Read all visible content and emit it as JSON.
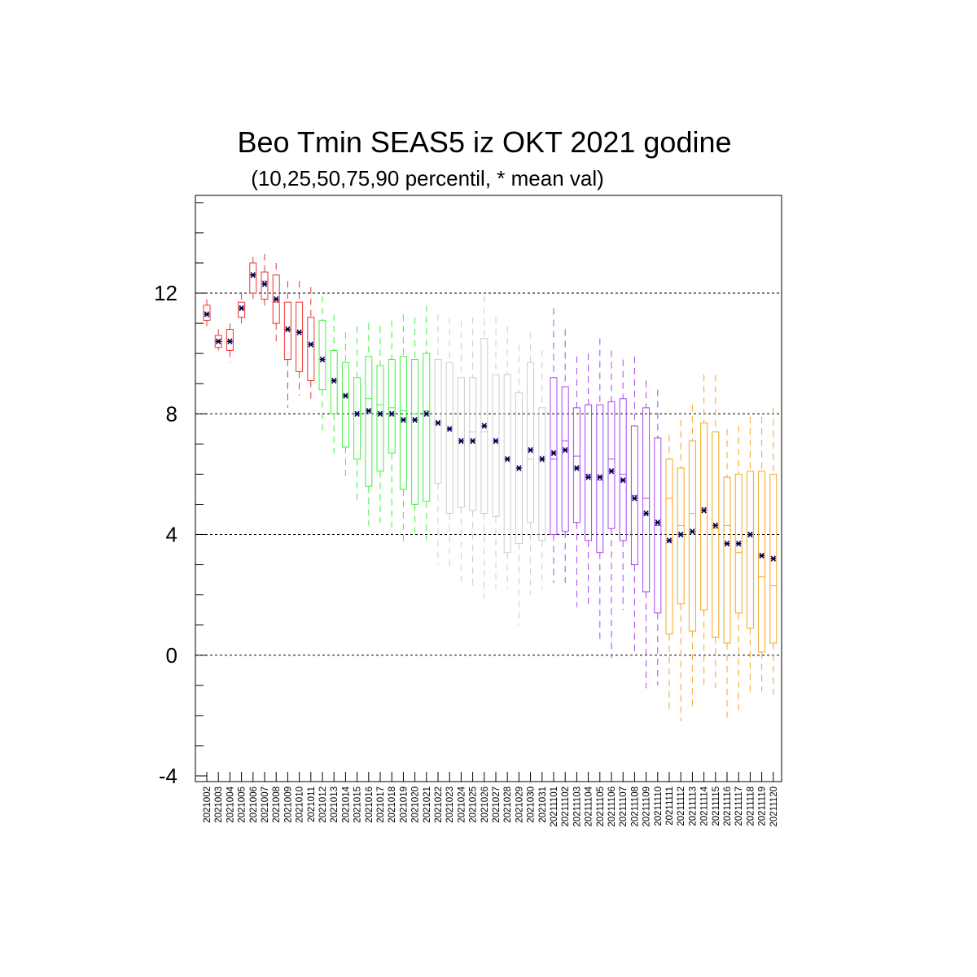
{
  "chart_data": {
    "type": "box",
    "title": "Beo Tmin SEAS5 iz OKT 2021 godine",
    "subtitle": "(10,25,50,75,90 percentil, * mean val)",
    "ylim": [
      -4,
      15.5
    ],
    "yticks": [
      -4,
      0,
      4,
      8,
      12
    ],
    "grid_y": [
      0,
      4,
      8,
      12
    ],
    "colors": {
      "red": "#ee3333",
      "green": "#44ee44",
      "gray": "#cccccc",
      "purple": "#aa44ee",
      "orange": "#f5a623",
      "mean": "#000055",
      "grid": "#000000"
    },
    "categories": [
      "2021002",
      "2021003",
      "2021004",
      "2021005",
      "2021006",
      "2021007",
      "2021008",
      "2021009",
      "2021010",
      "2021011",
      "2021012",
      "2021013",
      "2021014",
      "2021015",
      "2021016",
      "2021017",
      "2021018",
      "2021019",
      "2021020",
      "2021021",
      "2021022",
      "2021023",
      "2021024",
      "2021025",
      "2021026",
      "2021027",
      "2021028",
      "2021029",
      "2021030",
      "2021031",
      "20211101",
      "20211102",
      "20211103",
      "20211104",
      "20211105",
      "20211106",
      "20211107",
      "20211108",
      "20211109",
      "20211110",
      "20211111",
      "20211112",
      "20211113",
      "20211114",
      "20211115",
      "20211116",
      "20211117",
      "20211118",
      "20211119",
      "20211120"
    ],
    "boxes": [
      {
        "p10": 10.9,
        "p25": 11.1,
        "p50": 11.3,
        "p75": 11.6,
        "p90": 11.8,
        "mean": 11.3,
        "color": "red"
      },
      {
        "p10": 10.1,
        "p25": 10.2,
        "p50": 10.4,
        "p75": 10.6,
        "p90": 10.8,
        "mean": 10.4,
        "color": "red"
      },
      {
        "p10": 9.7,
        "p25": 10.1,
        "p50": 10.4,
        "p75": 10.8,
        "p90": 11.0,
        "mean": 10.4,
        "color": "red"
      },
      {
        "p10": 11.0,
        "p25": 11.2,
        "p50": 11.5,
        "p75": 11.7,
        "p90": 12.0,
        "mean": 11.5,
        "color": "red"
      },
      {
        "p10": 11.8,
        "p25": 12.0,
        "p50": 12.6,
        "p75": 13.0,
        "p90": 13.2,
        "mean": 12.6,
        "color": "red"
      },
      {
        "p10": 11.5,
        "p25": 11.8,
        "p50": 12.4,
        "p75": 12.7,
        "p90": 13.3,
        "mean": 12.3,
        "color": "red"
      },
      {
        "p10": 10.4,
        "p25": 11.0,
        "p50": 11.7,
        "p75": 12.6,
        "p90": 13.0,
        "mean": 11.8,
        "color": "red"
      },
      {
        "p10": 8.2,
        "p25": 9.8,
        "p50": 10.8,
        "p75": 11.7,
        "p90": 12.4,
        "mean": 10.8,
        "color": "red"
      },
      {
        "p10": 8.6,
        "p25": 9.4,
        "p50": 10.7,
        "p75": 11.7,
        "p90": 12.4,
        "mean": 10.7,
        "color": "red"
      },
      {
        "p10": 8.4,
        "p25": 9.1,
        "p50": 10.3,
        "p75": 11.2,
        "p90": 12.2,
        "mean": 10.3,
        "color": "red"
      },
      {
        "p10": 7.3,
        "p25": 8.8,
        "p50": 9.8,
        "p75": 11.1,
        "p90": 11.9,
        "mean": 9.8,
        "color": "green"
      },
      {
        "p10": 6.7,
        "p25": 8.0,
        "p50": 9.1,
        "p75": 10.1,
        "p90": 11.3,
        "mean": 9.1,
        "color": "green"
      },
      {
        "p10": 5.8,
        "p25": 6.9,
        "p50": 8.6,
        "p75": 9.7,
        "p90": 10.7,
        "mean": 8.6,
        "color": "green"
      },
      {
        "p10": 5.0,
        "p25": 6.5,
        "p50": 8.0,
        "p75": 9.2,
        "p90": 10.9,
        "mean": 8.0,
        "color": "green"
      },
      {
        "p10": 4.3,
        "p25": 5.6,
        "p50": 8.5,
        "p75": 9.9,
        "p90": 11.0,
        "mean": 8.1,
        "color": "green"
      },
      {
        "p10": 4.3,
        "p25": 6.1,
        "p50": 8.3,
        "p75": 9.6,
        "p90": 10.9,
        "mean": 8.0,
        "color": "green"
      },
      {
        "p10": 4.0,
        "p25": 6.7,
        "p50": 8.2,
        "p75": 9.8,
        "p90": 11.1,
        "mean": 8.0,
        "color": "green"
      },
      {
        "p10": 3.6,
        "p25": 5.5,
        "p50": 8.1,
        "p75": 9.9,
        "p90": 11.3,
        "mean": 7.8,
        "color": "green"
      },
      {
        "p10": 3.9,
        "p25": 5.0,
        "p50": 8.0,
        "p75": 9.8,
        "p90": 11.2,
        "mean": 7.8,
        "color": "green"
      },
      {
        "p10": 3.8,
        "p25": 5.1,
        "p50": 8.1,
        "p75": 10.0,
        "p90": 11.6,
        "mean": 8.0,
        "color": "green"
      },
      {
        "p10": 3.0,
        "p25": 5.7,
        "p50": 7.7,
        "p75": 9.8,
        "p90": 11.3,
        "mean": 7.7,
        "color": "gray"
      },
      {
        "p10": 2.8,
        "p25": 4.7,
        "p50": 7.5,
        "p75": 9.7,
        "p90": 11.2,
        "mean": 7.5,
        "color": "gray"
      },
      {
        "p10": 2.3,
        "p25": 4.9,
        "p50": 7.1,
        "p75": 9.2,
        "p90": 11.1,
        "mean": 7.1,
        "color": "gray"
      },
      {
        "p10": 2.2,
        "p25": 4.8,
        "p50": 7.4,
        "p75": 9.2,
        "p90": 11.2,
        "mean": 7.1,
        "color": "gray"
      },
      {
        "p10": 1.9,
        "p25": 4.7,
        "p50": 7.4,
        "p75": 10.5,
        "p90": 11.9,
        "mean": 7.6,
        "color": "gray"
      },
      {
        "p10": 2.2,
        "p25": 4.6,
        "p50": 7.1,
        "p75": 9.3,
        "p90": 11.2,
        "mean": 7.1,
        "color": "gray"
      },
      {
        "p10": 2.2,
        "p25": 3.4,
        "p50": 6.5,
        "p75": 9.3,
        "p90": 10.9,
        "mean": 6.5,
        "color": "gray"
      },
      {
        "p10": 1.0,
        "p25": 3.7,
        "p50": 6.2,
        "p75": 8.7,
        "p90": 10.3,
        "mean": 6.2,
        "color": "gray"
      },
      {
        "p10": 2.0,
        "p25": 4.4,
        "p50": 6.5,
        "p75": 9.7,
        "p90": 10.7,
        "mean": 6.8,
        "color": "gray"
      },
      {
        "p10": 2.2,
        "p25": 3.8,
        "p50": 6.6,
        "p75": 8.2,
        "p90": 10.1,
        "mean": 6.5,
        "color": "gray"
      },
      {
        "p10": 2.4,
        "p25": 4.0,
        "p50": 6.5,
        "p75": 9.2,
        "p90": 11.5,
        "mean": 6.7,
        "color": "purple"
      },
      {
        "p10": 2.4,
        "p25": 4.1,
        "p50": 7.1,
        "p75": 8.9,
        "p90": 10.8,
        "mean": 6.8,
        "color": "purple"
      },
      {
        "p10": 1.6,
        "p25": 4.4,
        "p50": 6.6,
        "p75": 8.2,
        "p90": 9.9,
        "mean": 6.2,
        "color": "purple"
      },
      {
        "p10": 1.7,
        "p25": 3.8,
        "p50": 6.0,
        "p75": 8.3,
        "p90": 10.0,
        "mean": 5.9,
        "color": "purple"
      },
      {
        "p10": 0.4,
        "p25": 3.4,
        "p50": 5.8,
        "p75": 8.3,
        "p90": 10.5,
        "mean": 5.9,
        "color": "purple"
      },
      {
        "p10": -0.1,
        "p25": 4.2,
        "p50": 6.5,
        "p75": 8.4,
        "p90": 10.1,
        "mean": 6.1,
        "color": "purple"
      },
      {
        "p10": 1.5,
        "p25": 3.8,
        "p50": 6.0,
        "p75": 8.5,
        "p90": 9.8,
        "mean": 5.8,
        "color": "purple"
      },
      {
        "p10": 0.1,
        "p25": 3.0,
        "p50": 5.3,
        "p75": 7.6,
        "p90": 9.9,
        "mean": 5.2,
        "color": "purple"
      },
      {
        "p10": -1.1,
        "p25": 2.1,
        "p50": 5.2,
        "p75": 8.2,
        "p90": 9.1,
        "mean": 4.7,
        "color": "purple"
      },
      {
        "p10": -1.0,
        "p25": 1.4,
        "p50": 4.3,
        "p75": 7.2,
        "p90": 8.8,
        "mean": 4.4,
        "color": "purple"
      },
      {
        "p10": -1.9,
        "p25": 0.7,
        "p50": 5.2,
        "p75": 6.5,
        "p90": 7.3,
        "mean": 3.8,
        "color": "orange"
      },
      {
        "p10": -2.2,
        "p25": 1.7,
        "p50": 4.3,
        "p75": 6.2,
        "p90": 7.8,
        "mean": 4.0,
        "color": "orange"
      },
      {
        "p10": -1.7,
        "p25": 0.8,
        "p50": 4.7,
        "p75": 7.1,
        "p90": 8.3,
        "mean": 4.1,
        "color": "orange"
      },
      {
        "p10": -1.0,
        "p25": 1.5,
        "p50": 4.9,
        "p75": 7.7,
        "p90": 9.3,
        "mean": 4.8,
        "color": "orange"
      },
      {
        "p10": -1.1,
        "p25": 0.6,
        "p50": 4.2,
        "p75": 7.4,
        "p90": 9.3,
        "mean": 4.3,
        "color": "orange"
      },
      {
        "p10": -2.1,
        "p25": 0.4,
        "p50": 4.3,
        "p75": 5.9,
        "p90": 7.5,
        "mean": 3.7,
        "color": "orange"
      },
      {
        "p10": -2.0,
        "p25": 1.4,
        "p50": 3.4,
        "p75": 6.0,
        "p90": 7.6,
        "mean": 3.7,
        "color": "orange"
      },
      {
        "p10": -1.3,
        "p25": 0.9,
        "p50": 4.0,
        "p75": 6.1,
        "p90": 7.9,
        "mean": 4.0,
        "color": "orange"
      },
      {
        "p10": -1.2,
        "p25": 0.1,
        "p50": 2.6,
        "p75": 6.1,
        "p90": 7.9,
        "mean": 3.3,
        "color": "orange"
      },
      {
        "p10": -1.3,
        "p25": 0.4,
        "p50": 2.3,
        "p75": 6.0,
        "p90": 8.2,
        "mean": 3.2,
        "color": "orange"
      }
    ]
  }
}
